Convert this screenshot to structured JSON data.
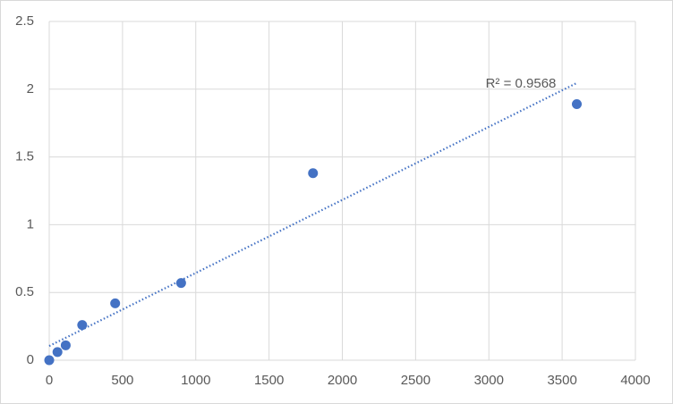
{
  "chart_data": {
    "type": "scatter",
    "x": [
      0,
      56.25,
      112.5,
      225,
      450,
      900,
      1800,
      3600
    ],
    "series": [
      {
        "color": "#4472c4",
        "values": [
          0,
          0.06,
          0.11,
          0.26,
          0.42,
          0.57,
          1.38,
          1.89
        ]
      }
    ],
    "trendline": "linear",
    "annotation": "R² = 0.9568",
    "xlim": [
      0,
      4000
    ],
    "xticks": [
      0,
      500,
      1000,
      1500,
      2000,
      2500,
      3000,
      3500,
      4000
    ],
    "ylim": [
      0,
      2.5
    ],
    "yticks": [
      0,
      0.5,
      1,
      1.5,
      2,
      2.5
    ],
    "grid": true
  }
}
